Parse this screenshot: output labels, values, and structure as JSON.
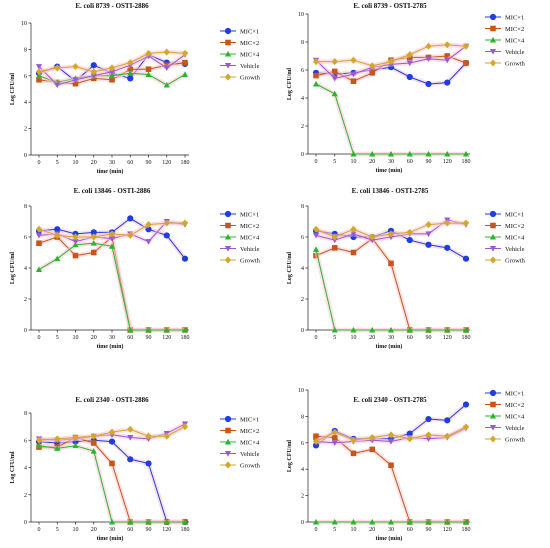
{
  "figure": {
    "layout": "3x2 grid of line charts",
    "legend_placement": "right"
  },
  "colors": {
    "MIC×1": "#1f3de0",
    "MIC×2": "#c8561a",
    "MIC×4": "#2bb52e",
    "Vehicle": "#9a57d6",
    "Growth": "#d4a62a",
    "band": "#f7c8cf"
  },
  "chart_data": [
    {
      "type": "line",
      "title": "E. coli 8739 - OSTI-2886",
      "xlabel": "time (min)",
      "ylabel": "Log CFU/ml",
      "categories": [
        "0",
        "5",
        "10",
        "20",
        "30",
        "60",
        "90",
        "120",
        "180"
      ],
      "ylim": [
        0,
        10
      ],
      "yticks": [
        0,
        2,
        4,
        6,
        8,
        10
      ],
      "grid": false,
      "series": [
        {
          "name": "MIC×1",
          "values": [
            6.2,
            6.7,
            5.6,
            6.8,
            6.2,
            5.8,
            7.6,
            7.0,
            6.9
          ]
        },
        {
          "name": "MIC×2",
          "values": [
            5.7,
            5.5,
            5.4,
            5.8,
            5.7,
            6.5,
            6.5,
            6.8,
            7.0
          ]
        },
        {
          "name": "MIC×4",
          "values": [
            6.0,
            5.5,
            5.8,
            6.0,
            6.0,
            6.2,
            6.1,
            5.3,
            6.1
          ]
        },
        {
          "name": "Vehicle",
          "values": [
            6.7,
            5.3,
            5.7,
            6.0,
            6.3,
            6.8,
            7.5,
            6.6,
            7.6
          ]
        },
        {
          "name": "Growth",
          "values": [
            6.3,
            6.6,
            6.7,
            6.3,
            6.6,
            7.0,
            7.7,
            7.8,
            7.7
          ]
        }
      ]
    },
    {
      "type": "line",
      "title": "E. coli 8739 - OSTI-2785",
      "xlabel": "time (min)",
      "ylabel": "Log CFU/ml",
      "categories": [
        "0",
        "5",
        "10",
        "20",
        "30",
        "60",
        "90",
        "120",
        "180"
      ],
      "ylim": [
        0,
        10
      ],
      "yticks": [
        0,
        2,
        4,
        6,
        8,
        10
      ],
      "grid": false,
      "series": [
        {
          "name": "MIC×1",
          "values": [
            5.8,
            5.7,
            5.8,
            6.0,
            6.2,
            5.5,
            5.0,
            5.1,
            6.5
          ]
        },
        {
          "name": "MIC×2",
          "values": [
            5.6,
            5.9,
            5.2,
            5.8,
            6.7,
            6.9,
            6.9,
            7.0,
            6.5
          ]
        },
        {
          "name": "MIC×4",
          "values": [
            5.0,
            4.3,
            0,
            0,
            0,
            0,
            0,
            0,
            0
          ]
        },
        {
          "name": "Vehicle",
          "values": [
            6.7,
            5.4,
            5.7,
            6.2,
            6.4,
            6.5,
            6.8,
            6.7,
            7.7
          ]
        },
        {
          "name": "Growth",
          "values": [
            6.6,
            6.6,
            6.7,
            6.3,
            6.6,
            7.1,
            7.7,
            7.8,
            7.7
          ]
        }
      ]
    },
    {
      "type": "line",
      "title": "E. coli 13846 - OSTI-2886",
      "xlabel": "time (min)",
      "ylabel": "Log CFU/ml",
      "categories": [
        "0",
        "5",
        "10",
        "20",
        "30",
        "60",
        "90",
        "120",
        "180"
      ],
      "ylim": [
        0,
        8
      ],
      "yticks": [
        0,
        2,
        4,
        6,
        8
      ],
      "grid": false,
      "series": [
        {
          "name": "MIC×1",
          "values": [
            6.4,
            6.5,
            6.2,
            6.3,
            6.3,
            7.2,
            6.5,
            6.1,
            4.6
          ]
        },
        {
          "name": "MIC×2",
          "values": [
            5.6,
            6.0,
            4.8,
            5.0,
            6.0,
            0,
            0,
            0,
            0
          ]
        },
        {
          "name": "MIC×4",
          "values": [
            3.9,
            4.6,
            5.5,
            5.6,
            5.4,
            0,
            0,
            0,
            0
          ]
        },
        {
          "name": "Vehicle",
          "values": [
            6.1,
            6.2,
            5.7,
            6.0,
            5.9,
            6.2,
            5.7,
            7.0,
            6.8
          ]
        },
        {
          "name": "Growth",
          "values": [
            6.5,
            6.1,
            6.0,
            6.0,
            6.2,
            6.1,
            6.8,
            6.9,
            6.9
          ]
        }
      ]
    },
    {
      "type": "line",
      "title": "E. coli 13846 - OSTI-2785",
      "xlabel": "time (min)",
      "ylabel": "Log CFU/ml",
      "categories": [
        "0",
        "5",
        "10",
        "20",
        "30",
        "60",
        "90",
        "120",
        "180"
      ],
      "ylim": [
        0,
        8
      ],
      "yticks": [
        0,
        2,
        4,
        6,
        8
      ],
      "grid": false,
      "series": [
        {
          "name": "MIC×1",
          "values": [
            6.4,
            6.2,
            6.0,
            6.0,
            6.4,
            5.8,
            5.5,
            5.3,
            4.6
          ]
        },
        {
          "name": "MIC×2",
          "values": [
            4.8,
            5.3,
            5.0,
            5.9,
            4.3,
            0,
            0,
            0,
            0
          ]
        },
        {
          "name": "MIC×4",
          "values": [
            5.2,
            0,
            0,
            0,
            0,
            0,
            0,
            0,
            0
          ]
        },
        {
          "name": "Vehicle",
          "values": [
            6.1,
            5.8,
            6.2,
            5.8,
            6.0,
            6.2,
            6.2,
            7.1,
            6.8
          ]
        },
        {
          "name": "Growth",
          "values": [
            6.5,
            6.0,
            6.5,
            6.0,
            6.2,
            6.3,
            6.8,
            6.9,
            6.9
          ]
        }
      ]
    },
    {
      "type": "line",
      "title": "E. coli 2340 - OSTI-2886",
      "xlabel": "time (min)",
      "ylabel": "Log CFU/ml",
      "categories": [
        "0",
        "5",
        "10",
        "20",
        "30",
        "60",
        "90",
        "120",
        "180"
      ],
      "ylim": [
        0,
        8
      ],
      "yticks": [
        0,
        2,
        4,
        6,
        8
      ],
      "grid": false,
      "series": [
        {
          "name": "MIC×1",
          "values": [
            5.9,
            5.8,
            5.9,
            6.0,
            5.9,
            4.6,
            4.3,
            0,
            0
          ]
        },
        {
          "name": "MIC×2",
          "values": [
            5.5,
            5.5,
            6.2,
            5.8,
            4.3,
            0,
            0,
            0,
            0
          ]
        },
        {
          "name": "MIC×4",
          "values": [
            5.6,
            5.4,
            5.6,
            5.2,
            0,
            0,
            0,
            0,
            0
          ]
        },
        {
          "name": "Vehicle",
          "values": [
            6.1,
            6.0,
            6.1,
            6.3,
            6.4,
            6.2,
            6.1,
            6.5,
            7.2
          ]
        },
        {
          "name": "Growth",
          "values": [
            6.0,
            6.1,
            6.2,
            6.3,
            6.6,
            6.8,
            6.3,
            6.3,
            7.0
          ]
        }
      ]
    },
    {
      "type": "line",
      "title": "E. coli 2340 - OSTI-2785",
      "xlabel": "time (min)",
      "ylabel": "Log CFU/ml",
      "categories": [
        "0",
        "5",
        "10",
        "20",
        "30",
        "60",
        "90",
        "120",
        "180"
      ],
      "ylim": [
        0,
        10
      ],
      "yticks": [
        0,
        2,
        4,
        6,
        8,
        10
      ],
      "grid": false,
      "series": [
        {
          "name": "MIC×1",
          "values": [
            5.8,
            6.9,
            6.3,
            6.3,
            6.3,
            6.7,
            7.8,
            7.7,
            8.9
          ]
        },
        {
          "name": "MIC×2",
          "values": [
            6.5,
            6.4,
            5.2,
            5.5,
            4.3,
            0,
            0,
            0,
            0
          ]
        },
        {
          "name": "MIC×4",
          "values": [
            0,
            0,
            0,
            0,
            0,
            0,
            0,
            0,
            0
          ]
        },
        {
          "name": "Vehicle",
          "values": [
            6.1,
            6.0,
            6.1,
            6.2,
            6.1,
            6.4,
            6.3,
            6.4,
            7.1
          ]
        },
        {
          "name": "Growth",
          "values": [
            6.1,
            6.8,
            6.2,
            6.4,
            6.6,
            6.3,
            6.6,
            6.5,
            7.2
          ]
        }
      ]
    }
  ]
}
